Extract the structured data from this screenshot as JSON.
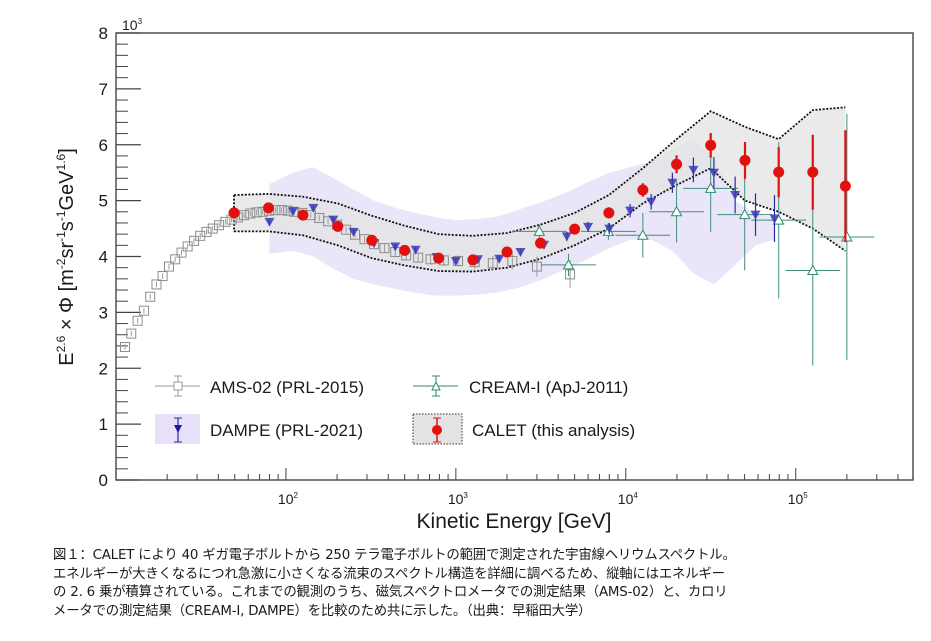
{
  "chart_data": {
    "type": "scatter",
    "title": "",
    "xlabel": "Kinetic Energy [GeV]",
    "ylabel": "E^{2.6} × Φ [m^{-2}sr^{-1}s^{-1}GeV^{1.6}]",
    "ylabel_parts": {
      "pre": "E",
      "exp1": "2.6",
      "mid": " × Φ [m",
      "e2": "-2",
      "t2": "sr",
      "e3": "-1",
      "t3": "s",
      "e4": "-1",
      "t4": "GeV",
      "e5": "1.6",
      "post": "]"
    },
    "y_multiplier": "10",
    "y_multiplier_exp": "3",
    "xscale": "log",
    "xlim": [
      10,
      490000
    ],
    "ylim": [
      0,
      8
    ],
    "yticks": [
      0,
      1,
      2,
      3,
      4,
      5,
      6,
      7,
      8
    ],
    "ytick_labels": [
      "0",
      "1",
      "2",
      "3",
      "4",
      "5",
      "6",
      "7",
      "8"
    ],
    "xticks_major": [
      {
        "value": 100,
        "base": "10",
        "exp": "2"
      },
      {
        "value": 1000,
        "base": "10",
        "exp": "3"
      },
      {
        "value": 10000,
        "base": "10",
        "exp": "4"
      },
      {
        "value": 100000,
        "base": "10",
        "exp": "5"
      }
    ],
    "grid": false,
    "legend_position": "bottom-left",
    "series": [
      {
        "name": "AMS-02 (PRL-2015)",
        "marker": "open-square",
        "color": "#8c8c8c",
        "x": [
          11.3,
          12.3,
          13.4,
          14.6,
          15.9,
          17.3,
          18.8,
          20.5,
          22.3,
          24.3,
          26.4,
          28.8,
          31.3,
          34.1,
          37.1,
          40.4,
          44.0,
          47.9,
          52.1,
          56.7,
          61.7,
          67.2,
          73.1,
          79.6,
          86.7,
          94.4,
          103,
          112,
          125,
          140,
          157,
          177,
          200,
          226,
          255,
          290,
          330,
          380,
          440,
          510,
          600,
          710,
          850,
          1030,
          1290,
          1650,
          2150,
          3000,
          4700
        ],
        "y": [
          2.38,
          2.62,
          2.85,
          3.03,
          3.28,
          3.5,
          3.65,
          3.82,
          3.95,
          4.07,
          4.18,
          4.28,
          4.37,
          4.44,
          4.5,
          4.56,
          4.62,
          4.66,
          4.7,
          4.74,
          4.77,
          4.79,
          4.8,
          4.82,
          4.83,
          4.83,
          4.82,
          4.8,
          4.78,
          4.74,
          4.69,
          4.63,
          4.57,
          4.48,
          4.39,
          4.31,
          4.22,
          4.15,
          4.08,
          4.02,
          3.98,
          3.95,
          3.93,
          3.92,
          3.9,
          3.88,
          3.92,
          3.82,
          3.68
        ],
        "yerr": [
          0.05,
          0.05,
          0.05,
          0.05,
          0.05,
          0.05,
          0.05,
          0.05,
          0.05,
          0.05,
          0.05,
          0.05,
          0.05,
          0.05,
          0.05,
          0.05,
          0.05,
          0.05,
          0.05,
          0.05,
          0.05,
          0.05,
          0.05,
          0.05,
          0.05,
          0.05,
          0.05,
          0.05,
          0.05,
          0.05,
          0.05,
          0.05,
          0.05,
          0.05,
          0.05,
          0.06,
          0.06,
          0.07,
          0.07,
          0.08,
          0.08,
          0.09,
          0.1,
          0.1,
          0.12,
          0.13,
          0.15,
          0.18,
          0.25
        ]
      },
      {
        "name": "CREAM-I (ApJ-2011)",
        "marker": "open-triangle-up",
        "color": "#2e8b6e",
        "x": [
          3100,
          4600,
          7900,
          12600,
          19900,
          31600,
          50100,
          79400,
          126000,
          200000
        ],
        "y": [
          4.45,
          3.85,
          4.45,
          4.38,
          4.8,
          5.22,
          4.75,
          4.65,
          3.75,
          4.35
        ],
        "yerr": [
          0.12,
          0.2,
          0.15,
          0.4,
          0.55,
          0.78,
          1.0,
          1.4,
          1.7,
          2.2
        ],
        "xerr_frac": 0.45
      },
      {
        "name": "DAMPE (PRL-2021)",
        "marker": "filled-triangle-down",
        "color": "#2a2aa8",
        "band_color": "#e8e0f8",
        "x": [
          80,
          110,
          145,
          190,
          250,
          330,
          440,
          580,
          770,
          1000,
          1350,
          1800,
          2400,
          3300,
          4500,
          6000,
          8000,
          10600,
          14100,
          18800,
          25000,
          33000,
          44000,
          58000,
          75000
        ],
        "y": [
          4.62,
          4.81,
          4.87,
          4.66,
          4.44,
          4.24,
          4.18,
          4.12,
          3.99,
          3.92,
          3.95,
          3.96,
          4.08,
          4.21,
          4.36,
          4.53,
          4.5,
          4.82,
          4.98,
          5.32,
          5.55,
          5.5,
          5.1,
          4.75,
          4.68
        ],
        "yerr": [
          0.04,
          0.04,
          0.04,
          0.05,
          0.05,
          0.05,
          0.05,
          0.05,
          0.05,
          0.05,
          0.05,
          0.06,
          0.06,
          0.07,
          0.08,
          0.09,
          0.1,
          0.12,
          0.14,
          0.18,
          0.22,
          0.28,
          0.33,
          0.38,
          0.42
        ],
        "band_lower": [
          4.05,
          4.1,
          4.0,
          3.78,
          3.6,
          3.5,
          3.42,
          3.35,
          3.3,
          3.3,
          3.32,
          3.36,
          3.45,
          3.6,
          3.78,
          3.96,
          4.15,
          4.3,
          4.3,
          4.1,
          3.7,
          3.5,
          3.85,
          4.2,
          4.3
        ],
        "band_upper": [
          5.3,
          5.5,
          5.6,
          5.4,
          5.2,
          5.0,
          4.87,
          4.78,
          4.7,
          4.65,
          4.67,
          4.72,
          4.85,
          4.99,
          5.15,
          5.33,
          5.5,
          5.6,
          5.7,
          5.9,
          6.1,
          5.75,
          5.0,
          4.75,
          4.7
        ]
      },
      {
        "name": "CALET (this analysis)",
        "marker": "filled-circle",
        "color": "#e31010",
        "band_color": "#e3e3e3",
        "x": [
          49.5,
          79,
          126,
          202,
          320,
          500,
          792,
          1260,
          2000,
          3150,
          5000,
          7950,
          12600,
          19900,
          31600,
          50300,
          79400,
          126000,
          196000
        ],
        "y": [
          4.78,
          4.87,
          4.74,
          4.54,
          4.29,
          4.11,
          3.97,
          3.94,
          4.08,
          4.24,
          4.49,
          4.78,
          5.19,
          5.65,
          5.99,
          5.72,
          5.51,
          5.51,
          5.26
        ],
        "yerr_stat": [
          0.03,
          0.03,
          0.03,
          0.04,
          0.04,
          0.05,
          0.05,
          0.06,
          0.06,
          0.07,
          0.08,
          0.1,
          0.12,
          0.16,
          0.22,
          0.33,
          0.45,
          0.67,
          1.0
        ],
        "band_lower": [
          4.45,
          4.45,
          4.38,
          4.2,
          3.97,
          3.84,
          3.74,
          3.73,
          3.8,
          3.96,
          4.2,
          4.5,
          4.95,
          5.28,
          5.58,
          5.0,
          4.8,
          4.5,
          4.1
        ],
        "band_upper": [
          5.1,
          5.12,
          5.07,
          4.95,
          4.73,
          4.55,
          4.4,
          4.37,
          4.42,
          4.57,
          4.78,
          5.1,
          5.58,
          6.1,
          6.6,
          6.32,
          6.1,
          6.62,
          6.67
        ]
      }
    ]
  },
  "caption": {
    "lines": [
      "図１：CALET により 40 ギガ電子ボルトから 250 テラ電子ボルトの範囲で測定された宇宙線ヘリウムスペクトル。",
      "エネルギーが大きくなるにつれ急激に小さくなる流束のスペクトル構造を詳細に調べるため、縦軸にはエネルギー",
      "の 2. 6 乗が積算されている。これまでの観測のうち、磁気スペクトロメータでの測定結果（AMS-02）と、カロリ",
      "メータでの測定結果（CREAM-I, DAMPE）を比較のため共に示した。（出典：早稲田大学）"
    ]
  }
}
